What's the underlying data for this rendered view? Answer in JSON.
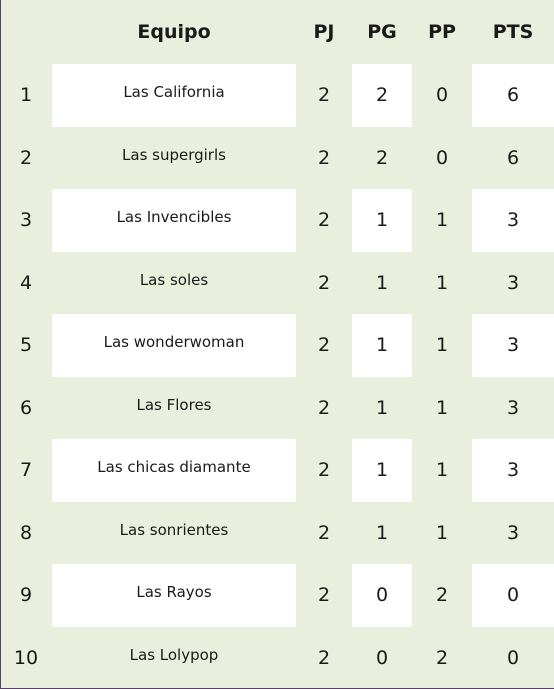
{
  "headers": {
    "team": "Equipo",
    "pj": "PJ",
    "pg": "PG",
    "pp": "PP",
    "pts": "PTS"
  },
  "rows": [
    {
      "rank": "1",
      "team": "Las California",
      "pj": "2",
      "pg": "2",
      "pp": "0",
      "pts": "6"
    },
    {
      "rank": "2",
      "team": "Las supergirls",
      "pj": "2",
      "pg": "2",
      "pp": "0",
      "pts": "6"
    },
    {
      "rank": "3",
      "team": "Las Invencibles",
      "pj": "2",
      "pg": "1",
      "pp": "1",
      "pts": "3"
    },
    {
      "rank": "4",
      "team": "Las soles",
      "pj": "2",
      "pg": "1",
      "pp": "1",
      "pts": "3"
    },
    {
      "rank": "5",
      "team": "Las wonderwoman",
      "pj": "2",
      "pg": "1",
      "pp": "1",
      "pts": "3"
    },
    {
      "rank": "6",
      "team": "Las Flores",
      "pj": "2",
      "pg": "1",
      "pp": "1",
      "pts": "3"
    },
    {
      "rank": "7",
      "team": "Las chicas diamante",
      "pj": "2",
      "pg": "1",
      "pp": "1",
      "pts": "3"
    },
    {
      "rank": "8",
      "team": "Las sonrientes",
      "pj": "2",
      "pg": "1",
      "pp": "1",
      "pts": "3"
    },
    {
      "rank": "9",
      "team": "Las Rayos",
      "pj": "2",
      "pg": "0",
      "pp": "2",
      "pts": "0"
    },
    {
      "rank": "10",
      "team": "Las Lolypop",
      "pj": "2",
      "pg": "0",
      "pp": "2",
      "pts": "0"
    }
  ],
  "colors": {
    "background": "#e8efdc",
    "highlight": "#ffffff",
    "border": "#5a3f6e"
  }
}
